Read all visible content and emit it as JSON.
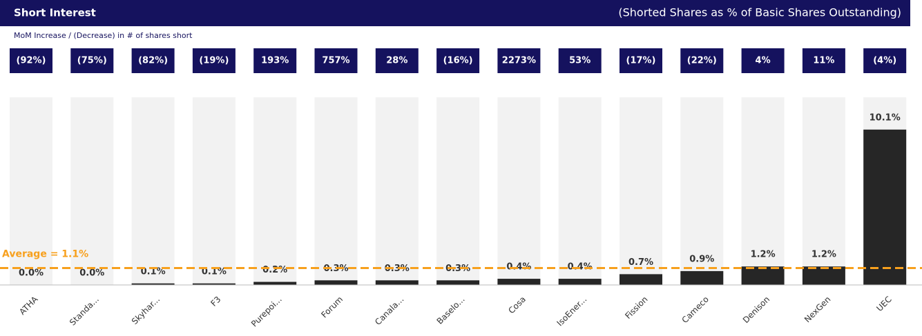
{
  "chart_data": {
    "type": "bar",
    "title": "Short Interest",
    "subtitle": "(Shorted Shares as % of Basic Shares Outstanding)",
    "note": "MoM Increase / (Decrease) in # of shares short",
    "categories": [
      "ATHA",
      "Standa...",
      "Skyhar...",
      "F3",
      "Purepoi...",
      "Forum",
      "Canala...",
      "Baselo...",
      "Cosa",
      "IsoEner...",
      "Fission",
      "Cameco",
      "Denison",
      "NexGen",
      "UEC"
    ],
    "values": [
      0.0,
      0.0,
      0.1,
      0.1,
      0.2,
      0.3,
      0.3,
      0.3,
      0.4,
      0.4,
      0.7,
      0.9,
      1.2,
      1.2,
      10.1
    ],
    "value_labels": [
      "0.0%",
      "0.0%",
      "0.1%",
      "0.1%",
      "0.2%",
      "0.3%",
      "0.3%",
      "0.3%",
      "0.4%",
      "0.4%",
      "0.7%",
      "0.9%",
      "1.2%",
      "1.2%",
      "10.1%"
    ],
    "color": "#262626",
    "ylim": [
      0,
      12.2
    ],
    "mom": {
      "values": [
        -92,
        -75,
        -82,
        -19,
        193,
        757,
        28,
        -16,
        2273,
        53,
        -17,
        -22,
        4,
        11,
        -4
      ],
      "value_labels": [
        "(92%)",
        "(75%)",
        "(82%)",
        "(19%)",
        "193%",
        "757%",
        "28%",
        "(16%)",
        "2273%",
        "53%",
        "(17%)",
        "(22%)",
        "4%",
        "11%",
        "(4%)"
      ]
    },
    "average": {
      "value": 1.1,
      "label": "Average = 1.1%",
      "color": "#f7a01d"
    }
  }
}
